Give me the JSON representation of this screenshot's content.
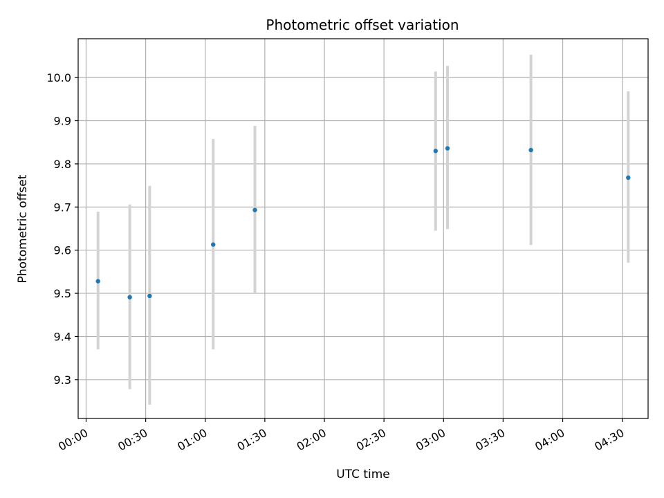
{
  "chart_data": {
    "type": "scatter",
    "title": "Photometric offset variation",
    "xlabel": "UTC time",
    "ylabel": "Photometric offset",
    "x_ticks": [
      "00:00",
      "00:30",
      "01:00",
      "01:30",
      "02:00",
      "02:30",
      "03:00",
      "03:30",
      "04:00",
      "04:30"
    ],
    "y_ticks": [
      "9.3",
      "9.4",
      "9.5",
      "9.6",
      "9.7",
      "9.8",
      "9.9",
      "10.0"
    ],
    "xlim": [
      "-00:04",
      "04:43"
    ],
    "ylim": [
      9.21,
      10.09
    ],
    "grid": true,
    "point_color": "#1f77b4",
    "errorbar_color": "#d3d3d3",
    "points": [
      {
        "x": "00:06",
        "y": 9.528,
        "yerr_low": 9.37,
        "yerr_high": 9.689
      },
      {
        "x": "00:22",
        "y": 9.491,
        "yerr_low": 9.278,
        "yerr_high": 9.706
      },
      {
        "x": "00:32",
        "y": 9.494,
        "yerr_low": 9.242,
        "yerr_high": 9.749
      },
      {
        "x": "01:04",
        "y": 9.613,
        "yerr_low": 9.37,
        "yerr_high": 9.858
      },
      {
        "x": "01:25",
        "y": 9.693,
        "yerr_low": 9.5,
        "yerr_high": 9.888
      },
      {
        "x": "02:56",
        "y": 9.83,
        "yerr_low": 9.645,
        "yerr_high": 10.014
      },
      {
        "x": "03:02",
        "y": 9.836,
        "yerr_low": 9.649,
        "yerr_high": 10.027
      },
      {
        "x": "03:44",
        "y": 9.832,
        "yerr_low": 9.612,
        "yerr_high": 10.053
      },
      {
        "x": "04:33",
        "y": 9.768,
        "yerr_low": 9.571,
        "yerr_high": 9.968
      }
    ]
  }
}
